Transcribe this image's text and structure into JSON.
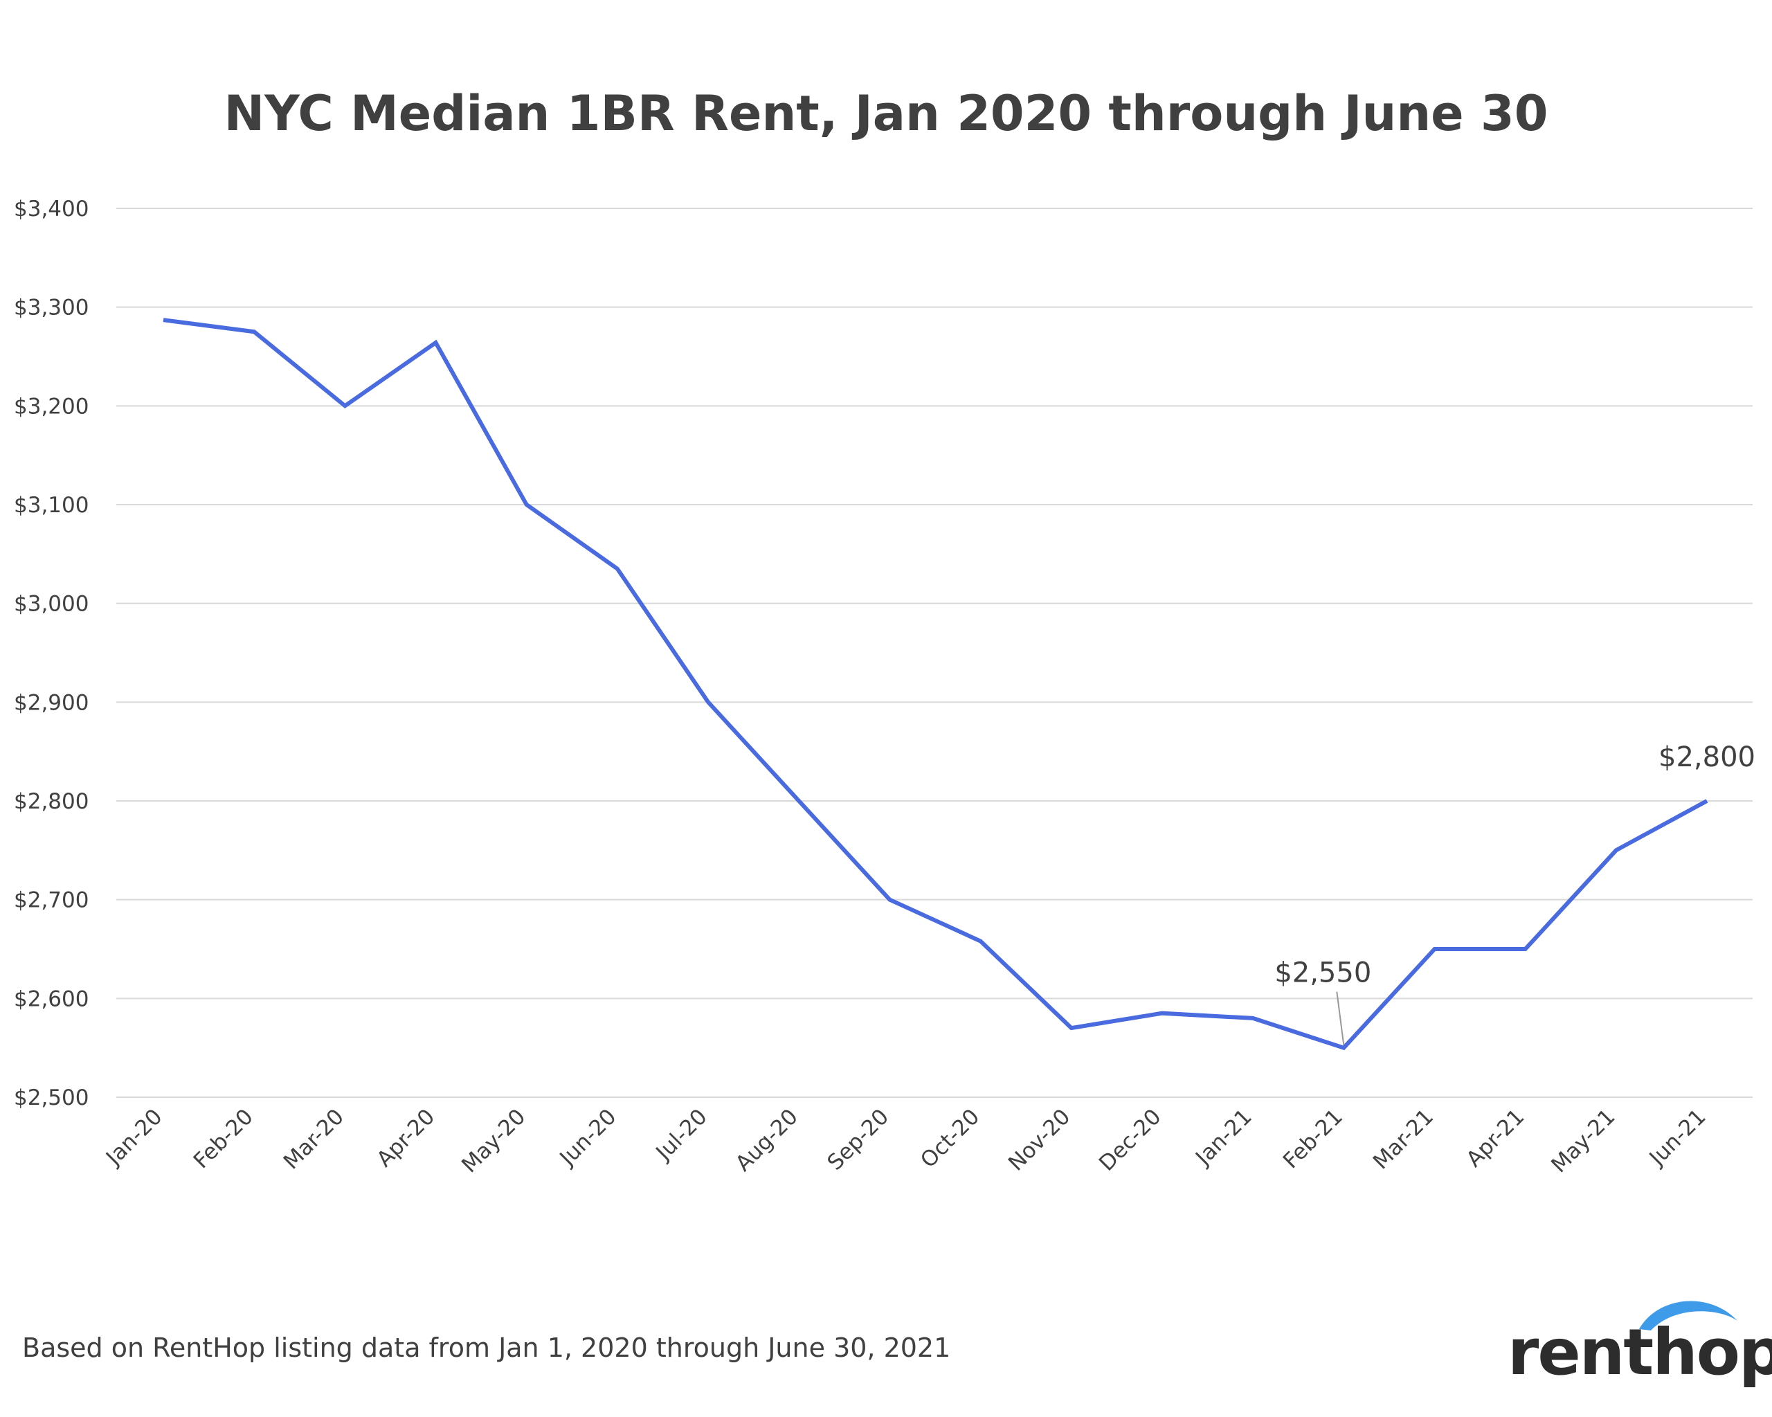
{
  "chart_data": {
    "type": "line",
    "title": "NYC Median 1BR Rent, Jan 2020 through June 30",
    "xlabel": "",
    "ylabel": "",
    "ylim": [
      2500,
      3400
    ],
    "yticks": [
      2500,
      2600,
      2700,
      2800,
      2900,
      3000,
      3100,
      3200,
      3300,
      3400
    ],
    "ytick_labels": [
      "$2,500",
      "$2,600",
      "$2,700",
      "$2,800",
      "$2,900",
      "$3,000",
      "$3,100",
      "$3,200",
      "$3,300",
      "$3,400"
    ],
    "categories": [
      "Jan-20",
      "Feb-20",
      "Mar-20",
      "Apr-20",
      "May-20",
      "Jun-20",
      "Jul-20",
      "Aug-20",
      "Sep-20",
      "Oct-20",
      "Nov-20",
      "Dec-20",
      "Jan-21",
      "Feb-21",
      "Mar-21",
      "Apr-21",
      "May-21",
      "Jun-21"
    ],
    "series": [
      {
        "values": [
          3287,
          3275,
          3200,
          3264,
          3100,
          3035,
          2900,
          2800,
          2700,
          2658,
          2570,
          2585,
          2580,
          2550,
          2650,
          2650,
          2750,
          2800
        ],
        "color": "#4a6be0"
      }
    ],
    "annotations": [
      {
        "category": "Feb-21",
        "value": 2550,
        "text": "$2,550"
      },
      {
        "category": "Jun-21",
        "value": 2800,
        "text": "$2,800"
      }
    ],
    "grid": true,
    "legend": "none"
  },
  "footer": {
    "source": "Based on RentHop listing data from Jan 1, 2020 through June 30, 2021"
  },
  "logo": {
    "text": "renthop",
    "icon": "arc-logo-icon",
    "colors": {
      "arc": "#3d9be9",
      "text": "#2d2d2d"
    }
  }
}
